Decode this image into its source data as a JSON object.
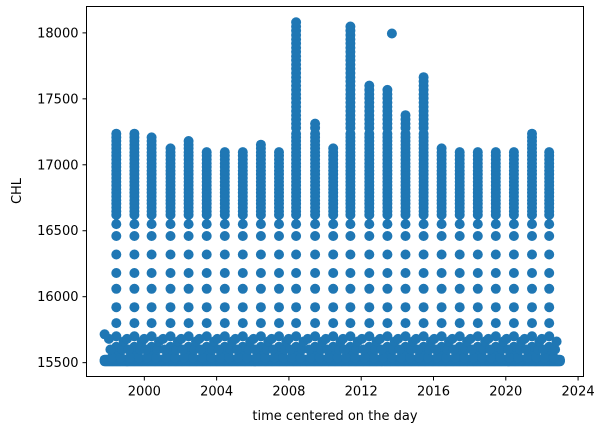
{
  "chart_data": {
    "type": "scatter",
    "title": "",
    "xlabel": "time centered on the day",
    "ylabel": "CHL",
    "xlim": [
      1996.8,
      2024.3
    ],
    "ylim": [
      15395,
      18200
    ],
    "xticks": [
      2000,
      2004,
      2008,
      2012,
      2016,
      2020,
      2024
    ],
    "yticks": [
      15500,
      16000,
      16500,
      17000,
      17500,
      18000
    ],
    "grid": false,
    "legend": "none",
    "marker": "circle",
    "color": "#1f77b4",
    "baseline": {
      "value": 15510,
      "x_start": 1997.8,
      "x_end": 2023.0
    },
    "outliers": [
      {
        "x": 1997.8,
        "y": 15715
      },
      {
        "x": 2013.7,
        "y": 17995
      }
    ],
    "season_columns": [
      {
        "x": 1998.45,
        "y_max": 17240
      },
      {
        "x": 1999.45,
        "y_max": 17240
      },
      {
        "x": 2000.4,
        "y_max": 17220
      },
      {
        "x": 2001.45,
        "y_max": 17130
      },
      {
        "x": 2002.45,
        "y_max": 17180
      },
      {
        "x": 2003.45,
        "y_max": 17120
      },
      {
        "x": 2004.45,
        "y_max": 17120
      },
      {
        "x": 2005.45,
        "y_max": 17120
      },
      {
        "x": 2006.45,
        "y_max": 17160
      },
      {
        "x": 2007.45,
        "y_max": 17120
      },
      {
        "x": 2008.4,
        "y_max": 18080
      },
      {
        "x": 2009.45,
        "y_max": 17330
      },
      {
        "x": 2010.45,
        "y_max": 17130
      },
      {
        "x": 2011.4,
        "y_max": 18060
      },
      {
        "x": 2012.45,
        "y_max": 17620
      },
      {
        "x": 2013.45,
        "y_max": 17570
      },
      {
        "x": 2014.45,
        "y_max": 17380
      },
      {
        "x": 2015.45,
        "y_max": 17690
      },
      {
        "x": 2016.45,
        "y_max": 17130
      },
      {
        "x": 2017.45,
        "y_max": 17120
      },
      {
        "x": 2018.45,
        "y_max": 17120
      },
      {
        "x": 2019.45,
        "y_max": 17120
      },
      {
        "x": 2020.45,
        "y_max": 17120
      },
      {
        "x": 2021.45,
        "y_max": 17240
      },
      {
        "x": 2022.4,
        "y_max": 17120
      }
    ]
  }
}
